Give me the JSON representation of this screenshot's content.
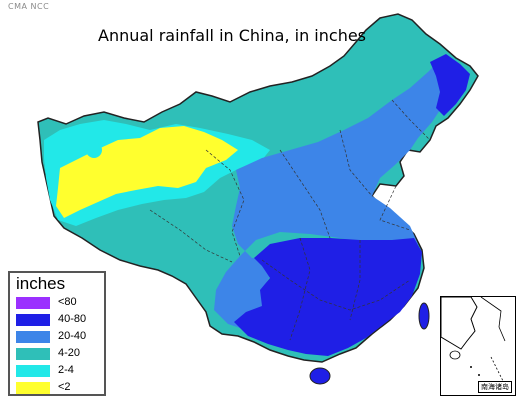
{
  "credit": "CMA NCC",
  "title": "Annual rainfall in China, in inches",
  "legend": {
    "title": "inches",
    "items": [
      {
        "label": "<80",
        "color": "#9b30ff"
      },
      {
        "label": "40-80",
        "color": "#1f1fe6"
      },
      {
        "label": "20-40",
        "color": "#3d85e8"
      },
      {
        "label": "4-20",
        "color": "#2fbfb8"
      },
      {
        "label": "2-4",
        "color": "#22e8e8"
      },
      {
        "label": "<2",
        "color": "#ffff2e"
      }
    ]
  },
  "inset": {
    "label": "南海诸岛"
  }
}
